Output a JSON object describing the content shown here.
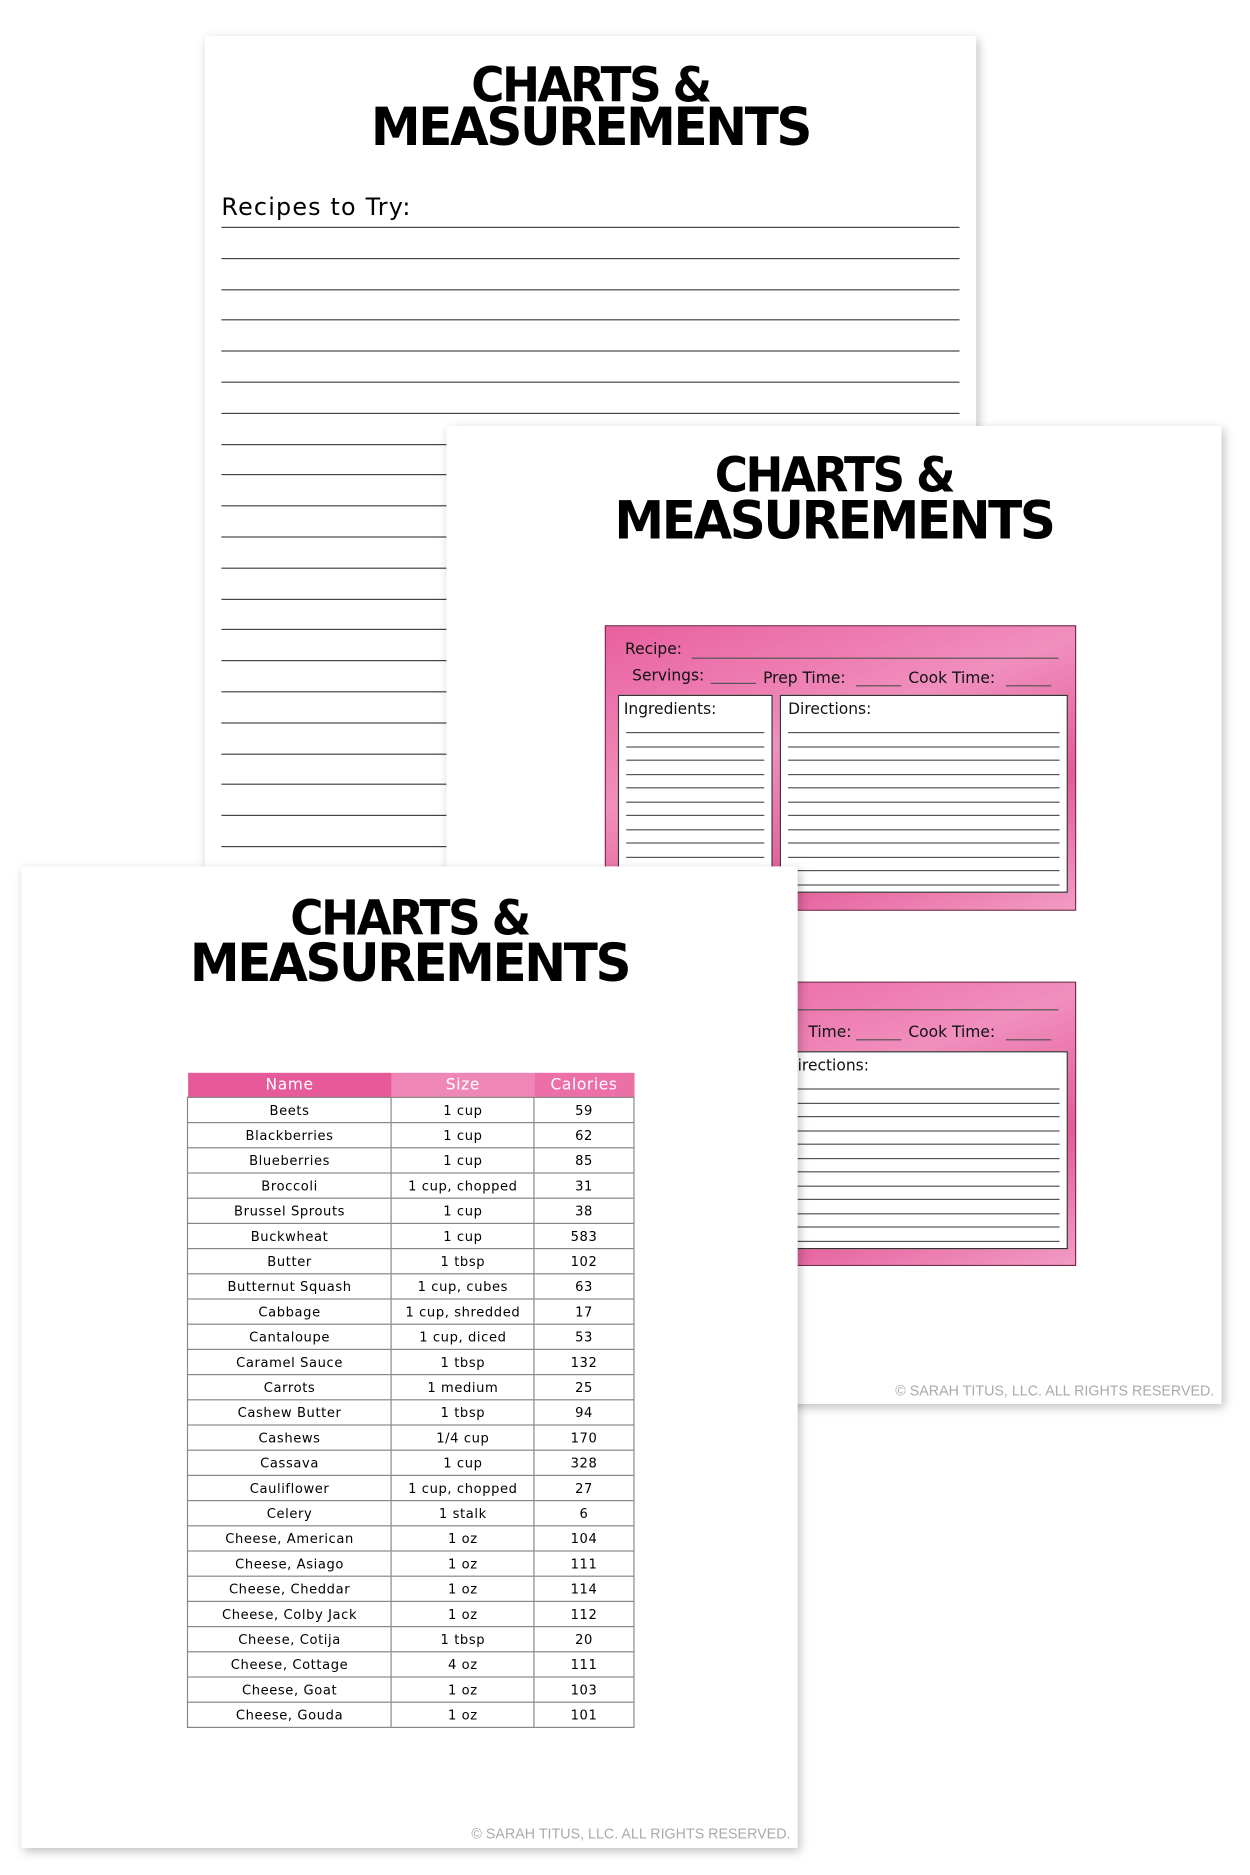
{
  "pages": [
    {
      "title_line1": "CHARTS &",
      "title_line2": "MEASUREMENTS",
      "heading": "Recipes to Try:"
    },
    {
      "title_line1": "CHARTS &",
      "title_line2": "MEASUREMENTS",
      "card": {
        "recipe": "Recipe:",
        "servings": "Servings:",
        "prep_time": "Prep Time:",
        "cook_time": "Cook Time:",
        "ingredients": "Ingredients:",
        "directions": "Directions:"
      },
      "card2": {
        "prep_time": "Time:",
        "cook_time": "Cook Time:",
        "directions": "irections:"
      },
      "footer": "© SARAH TITUS, LLC. ALL RIGHTS RESERVED."
    },
    {
      "title_line1": "CHARTS &",
      "title_line2": "MEASUREMENTS",
      "table": {
        "headers": [
          "Name",
          "Size",
          "Calories"
        ],
        "rows": [
          [
            "Beets",
            "1 cup",
            "59"
          ],
          [
            "Blackberries",
            "1 cup",
            "62"
          ],
          [
            "Blueberries",
            "1 cup",
            "85"
          ],
          [
            "Broccoli",
            "1 cup, chopped",
            "31"
          ],
          [
            "Brussel Sprouts",
            "1 cup",
            "38"
          ],
          [
            "Buckwheat",
            "1 cup",
            "583"
          ],
          [
            "Butter",
            "1 tbsp",
            "102"
          ],
          [
            "Butternut Squash",
            "1 cup, cubes",
            "63"
          ],
          [
            "Cabbage",
            "1 cup, shredded",
            "17"
          ],
          [
            "Cantaloupe",
            "1 cup, diced",
            "53"
          ],
          [
            "Caramel Sauce",
            "1 tbsp",
            "132"
          ],
          [
            "Carrots",
            "1 medium",
            "25"
          ],
          [
            "Cashew Butter",
            "1 tbsp",
            "94"
          ],
          [
            "Cashews",
            "1/4 cup",
            "170"
          ],
          [
            "Cassava",
            "1 cup",
            "328"
          ],
          [
            "Cauliflower",
            "1 cup, chopped",
            "27"
          ],
          [
            "Celery",
            "1 stalk",
            "6"
          ],
          [
            "Cheese, American",
            "1 oz",
            "104"
          ],
          [
            "Cheese, Asiago",
            "1 oz",
            "111"
          ],
          [
            "Cheese, Cheddar",
            "1 oz",
            "114"
          ],
          [
            "Cheese, Colby Jack",
            "1 oz",
            "112"
          ],
          [
            "Cheese, Cotija",
            "1 tbsp",
            "20"
          ],
          [
            "Cheese, Cottage",
            "4 oz",
            "111"
          ],
          [
            "Cheese, Goat",
            "1 oz",
            "103"
          ],
          [
            "Cheese, Gouda",
            "1 oz",
            "101"
          ]
        ]
      },
      "footer": "© SARAH TITUS, LLC. ALL RIGHTS RESERVED."
    }
  ]
}
